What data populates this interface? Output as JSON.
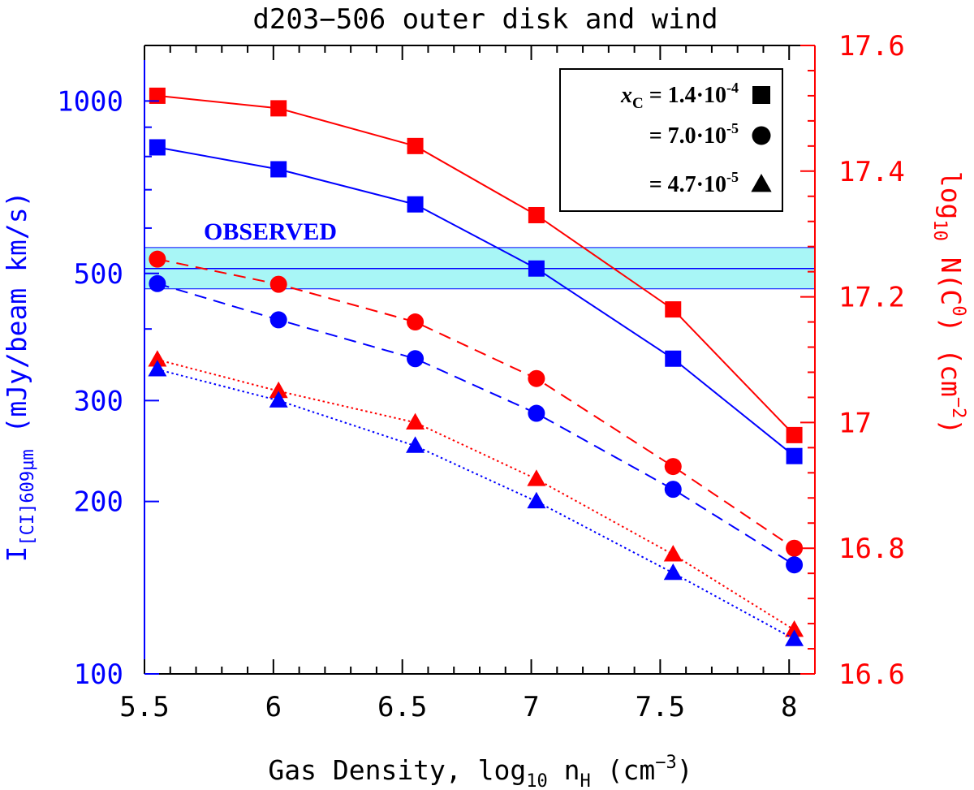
{
  "chart_data": {
    "type": "line",
    "title": "d203−506 outer disk and wind",
    "xlabel": {
      "main": "Gas Density, log",
      "sub": "10",
      "var": " n",
      "varsub": "H",
      "unit": " (cm",
      "exp": "−3",
      "close": ")"
    },
    "ylabel_left": {
      "main": "I",
      "sub": "[CI]609μm",
      "unit": " (mJy/beam km/s)"
    },
    "ylabel_right": {
      "main": "log",
      "sub": "10",
      "var": " N(C",
      "exp": "0",
      "unit": ") (cm",
      "exp2": "−2",
      "close": ")"
    },
    "x": [
      5.55,
      6.02,
      6.55,
      7.02,
      7.55,
      8.02
    ],
    "xlim": [
      5.5,
      8.1
    ],
    "ylim_left": [
      100,
      1250
    ],
    "y_left_scale": "log",
    "ylim_right": [
      16.6,
      17.6
    ],
    "x_ticks": [
      5.5,
      6,
      6.5,
      7,
      7.5,
      8
    ],
    "x_tick_labels": [
      "5.5",
      "6",
      "6.5",
      "7",
      "7.5",
      "8"
    ],
    "y_left_ticks": [
      100,
      200,
      300,
      500,
      1000
    ],
    "y_left_tick_labels": [
      "100",
      "200",
      "300",
      "500",
      "1000"
    ],
    "y_right_ticks": [
      16.6,
      16.8,
      17.0,
      17.2,
      17.4,
      17.6
    ],
    "y_right_tick_labels": [
      "16.6",
      "16.8",
      "17",
      "17.2",
      "17.4",
      "17.6"
    ],
    "observed": {
      "label": "OBSERVED",
      "value": 510,
      "low": 470,
      "high": 555,
      "color": "#0000ff",
      "band_color": "#a8f6f6"
    },
    "series": [
      {
        "axis": "left",
        "marker": "square",
        "line": "solid",
        "color": "#0000ff",
        "values": [
          830,
          760,
          660,
          510,
          355,
          240
        ]
      },
      {
        "axis": "left",
        "marker": "circle",
        "line": "dashed",
        "color": "#0000ff",
        "values": [
          480,
          415,
          355,
          285,
          210,
          155
        ]
      },
      {
        "axis": "left",
        "marker": "triangle",
        "line": "dotted",
        "color": "#0000ff",
        "values": [
          340,
          300,
          250,
          200,
          150,
          115
        ]
      },
      {
        "axis": "right",
        "marker": "square",
        "line": "solid",
        "color": "#ff0000",
        "values": [
          17.52,
          17.5,
          17.44,
          17.33,
          17.18,
          16.98
        ]
      },
      {
        "axis": "right",
        "marker": "circle",
        "line": "dashed",
        "color": "#ff0000",
        "values": [
          17.26,
          17.22,
          17.16,
          17.07,
          16.93,
          16.8
        ]
      },
      {
        "axis": "right",
        "marker": "triangle",
        "line": "dotted",
        "color": "#ff0000",
        "values": [
          17.1,
          17.05,
          17.0,
          16.91,
          16.79,
          16.67
        ]
      }
    ],
    "legend": {
      "position": "top-right",
      "entries": [
        {
          "var": "x",
          "varsub": "C",
          "prefix": " = ",
          "mant": "1.4·10",
          "exp": "-4",
          "marker": "square"
        },
        {
          "prefix": "= ",
          "mant": "7.0·10",
          "exp": "-5",
          "marker": "circle"
        },
        {
          "prefix": "= ",
          "mant": "4.7·10",
          "exp": "-5",
          "marker": "triangle"
        }
      ]
    },
    "colors": {
      "left_axis": "#0000ff",
      "right_axis": "#ff0000",
      "frame": "#000000"
    }
  }
}
